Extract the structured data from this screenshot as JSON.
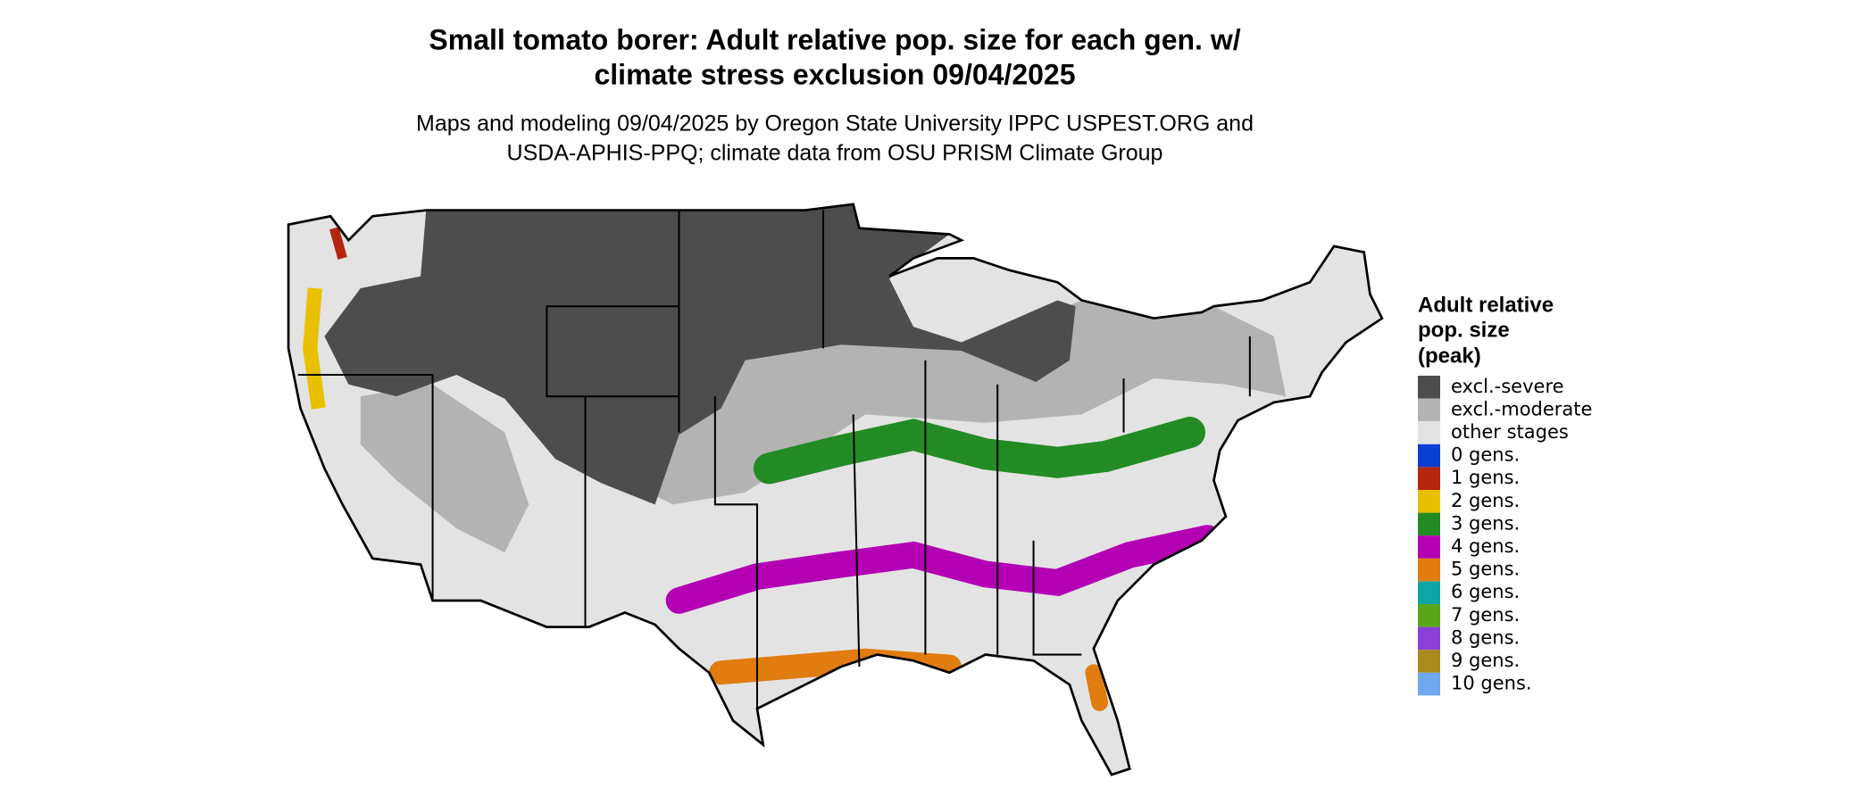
{
  "header": {
    "title_lines": [
      "Small tomato borer: Adult relative pop. size for each gen. w/",
      "climate stress exclusion 09/04/2025"
    ],
    "subtitle_lines": [
      "Maps and modeling 09/04/2025 by Oregon State University IPPC USPEST.ORG and",
      "USDA-APHIS-PPQ; climate data from OSU PRISM Climate Group"
    ]
  },
  "legend": {
    "title_lines": [
      "Adult relative",
      "pop. size",
      "(peak)"
    ],
    "items": [
      {
        "label": "excl.-severe",
        "color": "#4d4d4d"
      },
      {
        "label": "excl.-moderate",
        "color": "#b3b3b3"
      },
      {
        "label": "other stages",
        "color": "#e3e3e3"
      },
      {
        "label": "0 gens.",
        "color": "#0a3fd6"
      },
      {
        "label": "1 gens.",
        "color": "#b5250f"
      },
      {
        "label": "2 gens.",
        "color": "#e8c000"
      },
      {
        "label": "3 gens.",
        "color": "#238b23"
      },
      {
        "label": "4 gens.",
        "color": "#b300b3"
      },
      {
        "label": "5 gens.",
        "color": "#e07c10"
      },
      {
        "label": "6 gens.",
        "color": "#10a5a5"
      },
      {
        "label": "7 gens.",
        "color": "#5aa51a"
      },
      {
        "label": "8 gens.",
        "color": "#8c3fd6"
      },
      {
        "label": "9 gens.",
        "color": "#a88a1e"
      },
      {
        "label": "10 gens.",
        "color": "#6fa8ee"
      }
    ]
  }
}
